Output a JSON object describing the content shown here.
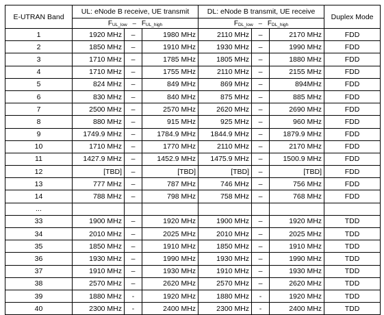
{
  "headers": {
    "band": "E-UTRAN Band",
    "ul": "UL: eNode B receive, UE transmit",
    "dl": "DL: eNode B transmit, UE receive",
    "duplex": "Duplex Mode",
    "ul_low": "F",
    "ul_low_sub": "UL_low",
    "ul_high": "F",
    "ul_high_sub": "UL_high",
    "dl_low": "F",
    "dl_low_sub": "DL_low",
    "dl_high": "F",
    "dl_high_sub": "DL_high",
    "range_sep": "–"
  },
  "rows": [
    {
      "band": "1",
      "ul_low": "1920 MHz",
      "ul_sep": "–",
      "ul_high": "1980 MHz",
      "dl_low": "2110 MHz",
      "dl_sep": "–",
      "dl_high": "2170 MHz",
      "mode": "FDD"
    },
    {
      "band": "2",
      "ul_low": "1850 MHz",
      "ul_sep": "–",
      "ul_high": "1910  MHz",
      "dl_low": "1930 MHz",
      "dl_sep": "–",
      "dl_high": "1990 MHz",
      "mode": "FDD"
    },
    {
      "band": "3",
      "ul_low": "1710 MHz",
      "ul_sep": "–",
      "ul_high": "1785 MHz",
      "dl_low": "1805 MHz",
      "dl_sep": "–",
      "dl_high": "1880 MHz",
      "mode": "FDD"
    },
    {
      "band": "4",
      "ul_low": "1710 MHz",
      "ul_sep": "–",
      "ul_high": "1755 MHz",
      "dl_low": "2110 MHz",
      "dl_sep": "–",
      "dl_high": "2155 MHz",
      "mode": "FDD"
    },
    {
      "band": "5",
      "ul_low": "824 MHz",
      "ul_sep": "–",
      "ul_high": "849 MHz",
      "dl_low": "869 MHz",
      "dl_sep": "–",
      "dl_high": "894MHz",
      "mode": "FDD"
    },
    {
      "band": "6",
      "ul_low": "830 MHz",
      "ul_sep": "–",
      "ul_high": "840 MHz",
      "dl_low": "875 MHz",
      "dl_sep": "–",
      "dl_high": "885 MHz",
      "mode": "FDD"
    },
    {
      "band": "7",
      "ul_low": "2500 MHz",
      "ul_sep": "–",
      "ul_high": "2570 MHz",
      "dl_low": "2620 MHz",
      "dl_sep": "–",
      "dl_high": "2690 MHz",
      "mode": "FDD"
    },
    {
      "band": "8",
      "ul_low": "880 MHz",
      "ul_sep": "–",
      "ul_high": "915 MHz",
      "dl_low": "925 MHz",
      "dl_sep": "–",
      "dl_high": "960 MHz",
      "mode": "FDD"
    },
    {
      "band": "9",
      "ul_low": "1749.9 MHz",
      "ul_sep": "–",
      "ul_high": "1784.9 MHz",
      "dl_low": "1844.9 MHz",
      "dl_sep": "–",
      "dl_high": "1879.9 MHz",
      "mode": "FDD"
    },
    {
      "band": "10",
      "ul_low": "1710 MHz",
      "ul_sep": "–",
      "ul_high": "1770 MHz",
      "dl_low": "2110 MHz",
      "dl_sep": "–",
      "dl_high": "2170 MHz",
      "mode": "FDD"
    },
    {
      "band": "11",
      "ul_low": "1427.9 MHz",
      "ul_sep": "–",
      "ul_high": "1452.9 MHz",
      "dl_low": "1475.9 MHz",
      "dl_sep": "–",
      "dl_high": "1500.9 MHz",
      "mode": "FDD"
    },
    {
      "band": "12",
      "ul_low": "[TBD]",
      "ul_sep": "–",
      "ul_high": "[TBD]",
      "dl_low": "[TBD]",
      "dl_sep": "–",
      "dl_high": "[TBD]",
      "mode": "FDD"
    },
    {
      "band": "13",
      "ul_low": "777 MHz",
      "ul_sep": "–",
      "ul_high": "787 MHz",
      "dl_low": "746 MHz",
      "dl_sep": "–",
      "dl_high": "756 MHz",
      "mode": "FDD"
    },
    {
      "band": "14",
      "ul_low": "788 MHz",
      "ul_sep": "–",
      "ul_high": "798 MHz",
      "dl_low": "758 MHz",
      "dl_sep": "–",
      "dl_high": "768 MHz",
      "mode": "FDD"
    },
    {
      "band": "...",
      "ul_low": "",
      "ul_sep": "",
      "ul_high": "",
      "dl_low": "",
      "dl_sep": "",
      "dl_high": "",
      "mode": ""
    },
    {
      "band": "33",
      "ul_low": "1900 MHz",
      "ul_sep": "–",
      "ul_high": "1920 MHz",
      "dl_low": "1900 MHz",
      "dl_sep": "–",
      "dl_high": "1920 MHz",
      "mode": "TDD"
    },
    {
      "band": "34",
      "ul_low": "2010 MHz",
      "ul_sep": "–",
      "ul_high": "2025 MHz",
      "dl_low": "2010 MHz",
      "dl_sep": "–",
      "dl_high": "2025 MHz",
      "mode": "TDD"
    },
    {
      "band": "35",
      "ul_low": "1850 MHz",
      "ul_sep": "–",
      "ul_high": "1910 MHz",
      "dl_low": "1850 MHz",
      "dl_sep": "–",
      "dl_high": "1910 MHz",
      "mode": "TDD"
    },
    {
      "band": "36",
      "ul_low": "1930 MHz",
      "ul_sep": "–",
      "ul_high": "1990 MHz",
      "dl_low": "1930 MHz",
      "dl_sep": "–",
      "dl_high": "1990 MHz",
      "mode": "TDD"
    },
    {
      "band": "37",
      "ul_low": "1910 MHz",
      "ul_sep": "–",
      "ul_high": "1930 MHz",
      "dl_low": "1910 MHz",
      "dl_sep": "–",
      "dl_high": "1930 MHz",
      "mode": "TDD"
    },
    {
      "band": "38",
      "ul_low": "2570 MHz",
      "ul_sep": "–",
      "ul_high": "2620 MHz",
      "dl_low": "2570 MHz",
      "dl_sep": "–",
      "dl_high": "2620 MHz",
      "mode": "TDD"
    },
    {
      "band": "39",
      "ul_low": "1880 MHz",
      "ul_sep": "-",
      "ul_high": "1920 MHz",
      "dl_low": "1880 MHz",
      "dl_sep": "-",
      "dl_high": "1920 MHz",
      "mode": "TDD"
    },
    {
      "band": "40",
      "ul_low": "2300 MHz",
      "ul_sep": "-",
      "ul_high": "2400 MHz",
      "dl_low": "2300 MHz",
      "dl_sep": "-",
      "dl_high": "2400 MHz",
      "mode": "TDD"
    }
  ]
}
